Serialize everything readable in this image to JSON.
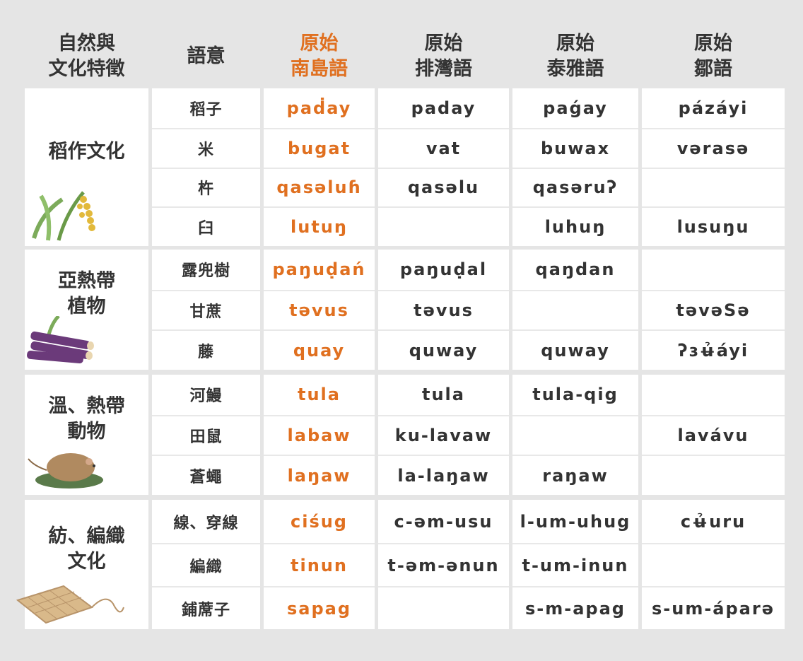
{
  "headers": [
    "自然與\n文化特徵",
    "語意",
    "原始\n南島語",
    "原始\n排灣語",
    "原始\n泰雅語",
    "原始\n鄒語"
  ],
  "colors": {
    "accent": "#e07020",
    "text": "#333333",
    "background": "#e5e5e5"
  },
  "groups": [
    {
      "category": "稻作文化",
      "illustration": "rice-plant",
      "rows": [
        [
          "稻子",
          "paḋay",
          "paday",
          "paǵay",
          "pázáyi"
        ],
        [
          "米",
          "bugat",
          "vat",
          "buwax",
          "vərasə"
        ],
        [
          "杵",
          "qasəluɦ",
          "qasəlu",
          "qasəruʔ",
          ""
        ],
        [
          "臼",
          "lutuŋ",
          "",
          "luhuŋ",
          "lusuŋu"
        ]
      ]
    },
    {
      "category": "亞熱帶\n植物",
      "illustration": "sugarcane",
      "rows": [
        [
          "露兜樹",
          "paŋuḍań",
          "paŋuḍal",
          "qaŋdan",
          ""
        ],
        [
          "甘蔗",
          "təvus",
          "təvus",
          "",
          "təvəSə"
        ],
        [
          "藤",
          "quay",
          "quway",
          "quway",
          "ʔɜʉ̉áyi"
        ]
      ]
    },
    {
      "category": "溫、熱帶\n動物",
      "illustration": "rat",
      "rows": [
        [
          "河鰻",
          "tula",
          "tula",
          "tula-qig",
          ""
        ],
        [
          "田鼠",
          "labaw",
          "ku-lavaw",
          "",
          "lavávu"
        ],
        [
          "蒼蠅",
          "laŋaw",
          "la-laŋaw",
          "raŋaw",
          ""
        ]
      ]
    },
    {
      "category": "紡、編織\n文化",
      "illustration": "woven-mat",
      "rows": [
        [
          "線、穿線",
          "ciśug",
          "c-əm-usu",
          "l-um-uhug",
          "cʉ̉uru"
        ],
        [
          "編織",
          "tinun",
          "t-əm-ənun",
          "t-um-inun",
          ""
        ],
        [
          "鋪蓆子",
          "sapag",
          "",
          "s-m-apag",
          "s-um-ápa​rə"
        ]
      ]
    }
  ]
}
